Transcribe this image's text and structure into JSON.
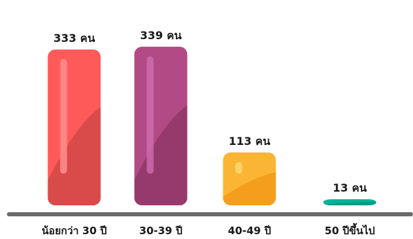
{
  "chart_data": {
    "type": "bar",
    "categories": [
      "น้อยกว่า 30 ปี",
      "30-39 ปี",
      "40-49 ปี",
      "50 ปีขึ้นไป"
    ],
    "values": [
      333,
      339,
      113,
      13
    ],
    "data_labels": [
      "333 คน",
      "339 คน",
      "113 คน",
      "13 คน"
    ],
    "colors": [
      "#FF5A5A",
      "#B24A86",
      "#FBB534",
      "#00B497"
    ],
    "shade_colors": [
      "#D94A4A",
      "#963A6E",
      "#F59E1E",
      "#009E85"
    ],
    "highlight_colors": [
      "#FF8E8E",
      "#CF6BAE",
      "#FDD870",
      "#00D9B8"
    ],
    "title": "",
    "xlabel": "",
    "ylabel": "",
    "baseline_color": "#6b6b6b"
  }
}
